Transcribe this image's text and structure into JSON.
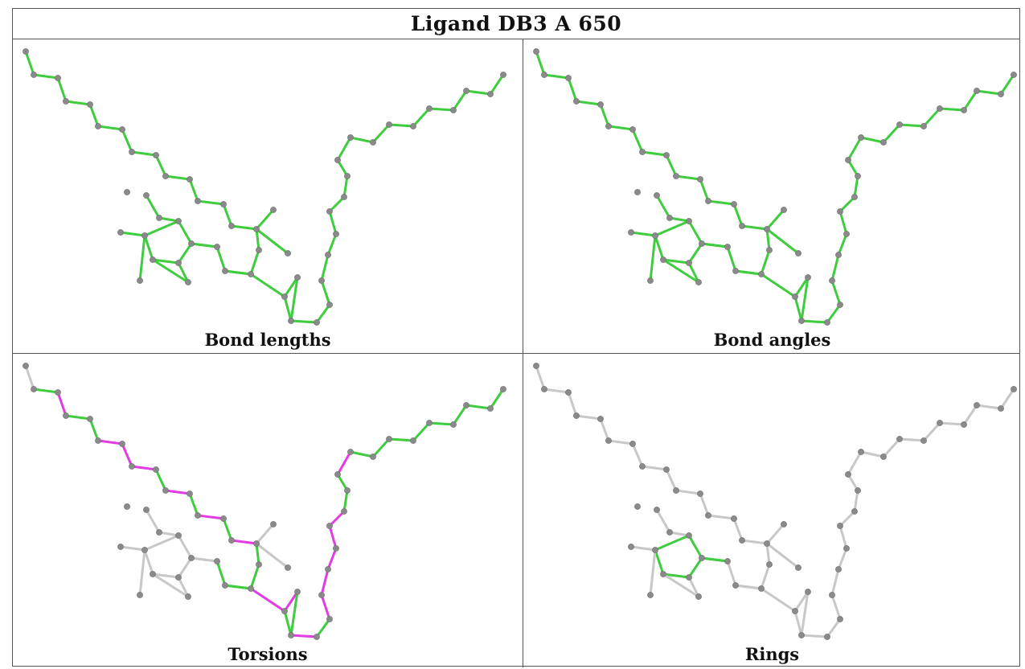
{
  "title": "Ligand DB3 A 650",
  "panels": [
    {
      "caption": "Bond lengths",
      "mode": "all_green"
    },
    {
      "caption": "Bond angles",
      "mode": "all_green"
    },
    {
      "caption": "Torsions",
      "mode": "torsion"
    },
    {
      "caption": "Rings",
      "mode": "ring"
    }
  ],
  "colors": {
    "ok": "#3fcc3f",
    "outlier": "#e23ce2",
    "neutral": "#c8c8c8",
    "atom": "#8a8a8a"
  }
}
